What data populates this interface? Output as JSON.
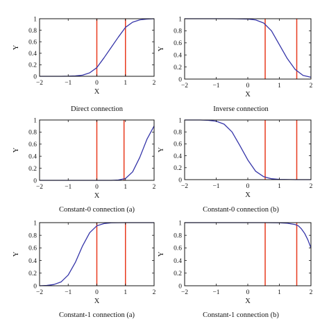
{
  "chart_data": [
    {
      "type": "line",
      "caption": "Direct connection",
      "xlabel": "X",
      "ylabel": "Y",
      "xlim": [
        -2,
        2
      ],
      "ylim": [
        0,
        1
      ],
      "xticks": [
        -2,
        -1,
        0,
        1,
        2
      ],
      "xtick_labels": [
        "−2",
        "−1",
        "0",
        "1",
        "2"
      ],
      "yticks": [
        0,
        0.2,
        0.4,
        0.6,
        0.8,
        1
      ],
      "ytick_labels": [
        "0",
        "0.2",
        "0.4",
        "0.6",
        "0.8",
        "1"
      ],
      "vlines": [
        0,
        1
      ],
      "curve": {
        "x": [
          -2,
          -1.75,
          -1.5,
          -1.25,
          -1,
          -0.75,
          -0.5,
          -0.25,
          0,
          0.25,
          0.5,
          0.75,
          1,
          1.25,
          1.5,
          1.75,
          2
        ],
        "y": [
          0,
          0,
          0,
          0,
          0.002,
          0.007,
          0.02,
          0.06,
          0.15,
          0.32,
          0.5,
          0.68,
          0.85,
          0.94,
          0.98,
          0.995,
          1
        ]
      }
    },
    {
      "type": "line",
      "caption": "Inverse connection",
      "xlabel": "X",
      "ylabel": "Y",
      "xlim": [
        -2,
        2
      ],
      "ylim": [
        0,
        1
      ],
      "xticks": [
        -2,
        -1,
        0,
        1,
        2
      ],
      "xtick_labels": [
        "−2",
        "−1",
        "0",
        "1",
        "2"
      ],
      "yticks": [
        0,
        0.2,
        0.4,
        0.6,
        0.8,
        1
      ],
      "ytick_labels": [
        "0",
        "0.2",
        "0.4",
        "0.6",
        "0.8",
        "1"
      ],
      "vlines": [
        0.55,
        1.55
      ],
      "curve": {
        "x": [
          -2,
          -1.5,
          -1,
          -0.5,
          0,
          0.25,
          0.5,
          0.75,
          1,
          1.25,
          1.5,
          1.75,
          2
        ],
        "y": [
          1,
          1,
          1,
          1,
          0.995,
          0.98,
          0.93,
          0.8,
          0.57,
          0.34,
          0.16,
          0.06,
          0.03
        ]
      }
    },
    {
      "type": "line",
      "caption": "Constant-0 connection (a)",
      "xlabel": "X",
      "ylabel": "Y",
      "xlim": [
        -2,
        2
      ],
      "ylim": [
        0,
        1
      ],
      "xticks": [
        -2,
        -1,
        0,
        1,
        2
      ],
      "xtick_labels": [
        "−2",
        "−1",
        "0",
        "1",
        "2"
      ],
      "yticks": [
        0,
        0.2,
        0.4,
        0.6,
        0.8,
        1
      ],
      "ytick_labels": [
        "0",
        "0.2",
        "0.4",
        "0.6",
        "0.8",
        "1"
      ],
      "vlines": [
        0,
        0.95
      ],
      "curve": {
        "x": [
          -2,
          -1,
          0,
          0.5,
          0.75,
          1,
          1.25,
          1.5,
          1.75,
          2
        ],
        "y": [
          0,
          0,
          0,
          0,
          0.005,
          0.03,
          0.14,
          0.38,
          0.68,
          0.9
        ]
      }
    },
    {
      "type": "line",
      "caption": "Constant-0 connection (b)",
      "xlabel": "X",
      "ylabel": "Y",
      "xlim": [
        -2,
        2
      ],
      "ylim": [
        0,
        1
      ],
      "xticks": [
        -2,
        -1,
        0,
        1,
        2
      ],
      "xtick_labels": [
        "−2",
        "−1",
        "0",
        "1",
        "2"
      ],
      "yticks": [
        0,
        0.2,
        0.4,
        0.6,
        0.8,
        1
      ],
      "ytick_labels": [
        "0",
        "0.2",
        "0.4",
        "0.6",
        "0.8",
        "1"
      ],
      "vlines": [
        0.55,
        1.55
      ],
      "curve": {
        "x": [
          -2,
          -1.5,
          -1.25,
          -1,
          -0.75,
          -0.5,
          -0.25,
          0,
          0.25,
          0.5,
          0.75,
          1,
          1.5,
          2
        ],
        "y": [
          1,
          1,
          0.995,
          0.98,
          0.93,
          0.8,
          0.57,
          0.33,
          0.14,
          0.05,
          0.015,
          0.004,
          0,
          0
        ]
      }
    },
    {
      "type": "line",
      "caption": "Constant-1 connection (a)",
      "xlabel": "X",
      "ylabel": "Y",
      "xlim": [
        -2,
        2
      ],
      "ylim": [
        0,
        1
      ],
      "xticks": [
        -2,
        -1,
        0,
        1,
        2
      ],
      "xtick_labels": [
        "−2",
        "−1",
        "0",
        "1",
        "2"
      ],
      "yticks": [
        0,
        0.2,
        0.4,
        0.6,
        0.8,
        1
      ],
      "ytick_labels": [
        "0",
        "0.2",
        "0.4",
        "0.6",
        "0.8",
        "1"
      ],
      "vlines": [
        0,
        1
      ],
      "curve": {
        "x": [
          -2,
          -1.75,
          -1.5,
          -1.25,
          -1,
          -0.75,
          -0.5,
          -0.25,
          0,
          0.25,
          0.5,
          1,
          1.5,
          2
        ],
        "y": [
          0,
          0.005,
          0.02,
          0.06,
          0.17,
          0.37,
          0.63,
          0.84,
          0.95,
          0.985,
          0.997,
          1,
          1,
          1
        ]
      }
    },
    {
      "type": "line",
      "caption": "Constant-1 connection (b)",
      "xlabel": "X",
      "ylabel": "Y",
      "xlim": [
        -2,
        2
      ],
      "ylim": [
        0,
        1
      ],
      "xticks": [
        -2,
        -1,
        0,
        1,
        2
      ],
      "xtick_labels": [
        "−2",
        "−1",
        "0",
        "1",
        "2"
      ],
      "yticks": [
        0,
        0.2,
        0.4,
        0.6,
        0.8,
        1
      ],
      "ytick_labels": [
        "0",
        "0.2",
        "0.4",
        "0.6",
        "0.8",
        "1"
      ],
      "vlines": [
        0.55,
        1.55
      ],
      "curve": {
        "x": [
          -2,
          -1,
          0,
          0.5,
          1,
          1.25,
          1.5,
          1.6,
          1.7,
          1.8,
          1.9,
          2
        ],
        "y": [
          1,
          1,
          1,
          1,
          0.998,
          0.99,
          0.97,
          0.95,
          0.9,
          0.83,
          0.73,
          0.6
        ]
      }
    }
  ],
  "colors": {
    "curve": "#3434a8",
    "vline": "#e83a1e",
    "axis": "#111111"
  }
}
